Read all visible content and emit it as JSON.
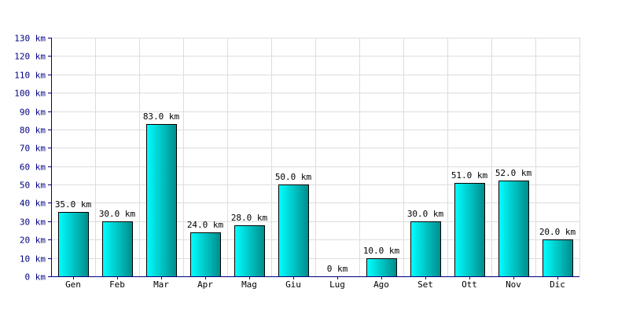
{
  "chart_data": {
    "type": "bar",
    "title": "",
    "xlabel": "",
    "ylabel": "",
    "unit": "km",
    "categories": [
      "Gen",
      "Feb",
      "Mar",
      "Apr",
      "Mag",
      "Giu",
      "Lug",
      "Ago",
      "Set",
      "Ott",
      "Nov",
      "Dic"
    ],
    "values": [
      35,
      30,
      83,
      24,
      28,
      50,
      0,
      10,
      30,
      51,
      52,
      20
    ],
    "value_labels": [
      "35.0 km",
      "30.0 km",
      "83.0 km",
      "24.0 km",
      "28.0 km",
      "50.0 km",
      "0 km",
      "10.0 km",
      "30.0 km",
      "51.0 km",
      "52.0 km",
      "20.0 km"
    ],
    "y_ticks": [
      {
        "value": 0,
        "label": "0 km"
      },
      {
        "value": 10,
        "label": "10 km"
      },
      {
        "value": 20,
        "label": "20 km"
      },
      {
        "value": 30,
        "label": "30 km"
      },
      {
        "value": 40,
        "label": "40 km"
      },
      {
        "value": 50,
        "label": "50 km"
      },
      {
        "value": 60,
        "label": "60 km"
      },
      {
        "value": 70,
        "label": "70 km"
      },
      {
        "value": 80,
        "label": "80 km"
      },
      {
        "value": 90,
        "label": "90 km"
      },
      {
        "value": 100,
        "label": "100 km"
      },
      {
        "value": 110,
        "label": "110 km"
      },
      {
        "value": 120,
        "label": "120 km"
      },
      {
        "value": 130,
        "label": "130 km"
      }
    ],
    "ylim": [
      0,
      130
    ],
    "grid": true,
    "legend": "none",
    "colors": {
      "bar_light": "#00ffff",
      "bar_dark": "#008b8b",
      "bar_edge": "#000000",
      "grid": "#dddddd",
      "axis": "#000080",
      "y_tick_text": "#000080",
      "x_tick_text": "#000000"
    }
  }
}
